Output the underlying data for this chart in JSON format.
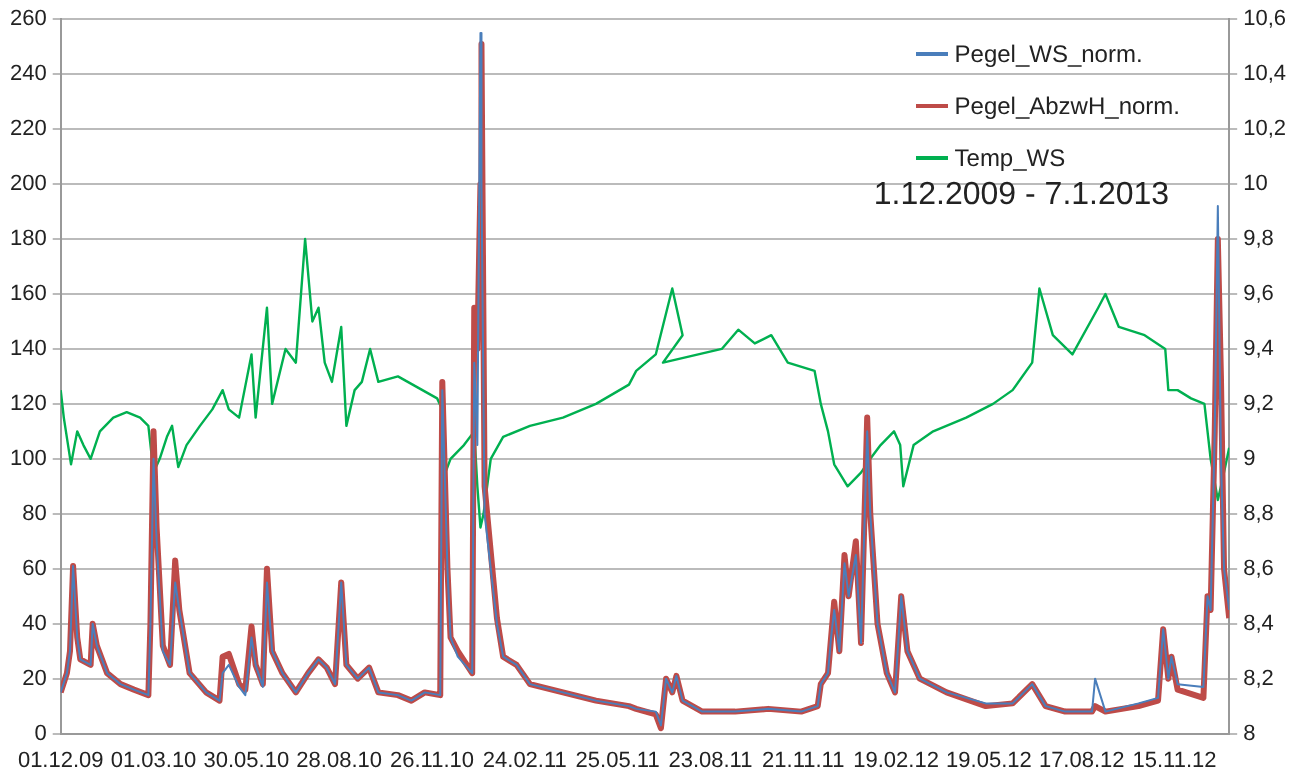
{
  "chart_data": {
    "type": "line",
    "annotations": [
      "1.12.2009 - 7.1.2013"
    ],
    "xlim": [
      "2009-12-01",
      "2013-01-07"
    ],
    "xticks": [
      {
        "value": "2009-12-01",
        "label": "01.12.09"
      },
      {
        "value": "2010-03-01",
        "label": "01.03.10"
      },
      {
        "value": "2010-05-30",
        "label": "30.05.10"
      },
      {
        "value": "2010-08-28",
        "label": "28.08.10"
      },
      {
        "value": "2010-11-26",
        "label": "26.11.10"
      },
      {
        "value": "2011-02-24",
        "label": "24.02.11"
      },
      {
        "value": "2011-05-25",
        "label": "25.05.11"
      },
      {
        "value": "2011-08-23",
        "label": "23.08.11"
      },
      {
        "value": "2011-11-21",
        "label": "21.11.11"
      },
      {
        "value": "2012-02-19",
        "label": "19.02.12"
      },
      {
        "value": "2012-05-19",
        "label": "19.05.12"
      },
      {
        "value": "2012-08-17",
        "label": "17.08.12"
      },
      {
        "value": "2012-11-15",
        "label": "15.11.12"
      }
    ],
    "ylim": [
      0,
      260
    ],
    "yticks": [
      0,
      20,
      40,
      60,
      80,
      100,
      120,
      140,
      160,
      180,
      200,
      220,
      240,
      260
    ],
    "y2lim": [
      8,
      10.6
    ],
    "y2ticks": [
      {
        "value": 8,
        "label": "8"
      },
      {
        "value": 8.2,
        "label": "8,2"
      },
      {
        "value": 8.4,
        "label": "8,4"
      },
      {
        "value": 8.6,
        "label": "8,6"
      },
      {
        "value": 8.8,
        "label": "8,8"
      },
      {
        "value": 9,
        "label": "9"
      },
      {
        "value": 9.2,
        "label": "9,2"
      },
      {
        "value": 9.4,
        "label": "9,4"
      },
      {
        "value": 9.6,
        "label": "9,6"
      },
      {
        "value": 9.8,
        "label": "9,8"
      },
      {
        "value": 10,
        "label": "10"
      },
      {
        "value": 10.2,
        "label": "10,2"
      },
      {
        "value": 10.4,
        "label": "10,4"
      },
      {
        "value": 10.6,
        "label": "10,6"
      }
    ],
    "grid": "y",
    "legend": "top right",
    "marker": "none",
    "line_style": "solid",
    "x": [
      "2009-12-01",
      "2009-12-07",
      "2009-12-10",
      "2009-12-13",
      "2009-12-17",
      "2009-12-20",
      "2009-12-30",
      "2010-01-01",
      "2010-01-05",
      "2010-01-15",
      "2010-01-28",
      "2010-02-10",
      "2010-02-24",
      "2010-02-26",
      "2010-03-01",
      "2010-03-04",
      "2010-03-10",
      "2010-03-17",
      "2010-03-22",
      "2010-03-26",
      "2010-04-05",
      "2010-04-21",
      "2010-05-04",
      "2010-05-07",
      "2010-05-13",
      "2010-05-23",
      "2010-05-29",
      "2010-06-04",
      "2010-06-08",
      "2010-06-15",
      "2010-06-19",
      "2010-06-24",
      "2010-07-04",
      "2010-07-17",
      "2010-07-29",
      "2010-08-08",
      "2010-08-16",
      "2010-08-24",
      "2010-08-30",
      "2010-09-04",
      "2010-09-15",
      "2010-09-26",
      "2010-10-05",
      "2010-10-24",
      "2010-11-06",
      "2010-11-19",
      "2010-12-04",
      "2010-12-06",
      "2010-12-11",
      "2010-12-14",
      "2010-12-21",
      "2011-01-04",
      "2011-01-06",
      "2011-01-09",
      "2011-01-12",
      "2011-01-13",
      "2011-01-16",
      "2011-01-28",
      "2011-02-03",
      "2011-02-16",
      "2011-03-01",
      "2011-04-02",
      "2011-05-04",
      "2011-06-05",
      "2011-06-12",
      "2011-07-01",
      "2011-07-06",
      "2011-07-11",
      "2011-07-17",
      "2011-07-21",
      "2011-07-27",
      "2011-08-15",
      "2011-09-16",
      "2011-10-18",
      "2011-11-19",
      "2011-12-05",
      "2011-12-08",
      "2011-12-15",
      "2011-12-18",
      "2011-12-21",
      "2011-12-26",
      "2011-12-31",
      "2012-01-04",
      "2012-01-11",
      "2012-01-16",
      "2012-01-22",
      "2012-01-25",
      "2012-02-01",
      "2012-02-10",
      "2012-02-18",
      "2012-02-24",
      "2012-03-01",
      "2012-03-13",
      "2012-04-08",
      "2012-05-16",
      "2012-06-11",
      "2012-06-30",
      "2012-07-13",
      "2012-08-01",
      "2012-08-27",
      "2012-08-30",
      "2012-09-09",
      "2012-10-11",
      "2012-10-30",
      "2012-11-04",
      "2012-11-09",
      "2012-11-12",
      "2012-11-18",
      "2012-12-13",
      "2012-12-17",
      "2012-12-20",
      "2012-12-24",
      "2012-12-27",
      "2012-12-30",
      "2013-01-02",
      "2013-01-07"
    ],
    "series": [
      {
        "name": "Pegel_WS_norm.",
        "color": "#4a7ebb",
        "values": [
          15,
          22,
          30,
          61,
          35,
          27,
          25,
          40,
          32,
          22,
          18,
          16,
          14,
          40,
          100,
          70,
          30,
          25,
          55,
          45,
          22,
          15,
          12,
          22,
          25,
          17,
          14,
          35,
          25,
          17,
          55,
          30,
          22,
          15,
          22,
          27,
          24,
          18,
          55,
          25,
          20,
          24,
          15,
          14,
          12,
          15,
          14,
          125,
          60,
          35,
          28,
          22,
          135,
          105,
          255,
          200,
          80,
          40,
          28,
          25,
          18,
          15,
          12,
          10,
          9,
          8,
          3,
          20,
          15,
          21,
          12,
          8,
          8,
          9,
          8,
          10,
          18,
          22,
          35,
          45,
          30,
          62,
          50,
          65,
          33,
          110,
          80,
          40,
          22,
          15,
          50,
          30,
          20,
          15,
          11,
          11,
          18,
          10,
          8,
          8,
          20,
          8,
          11,
          13,
          38,
          20,
          28,
          18,
          17,
          50,
          45,
          110,
          192,
          100,
          60,
          45
        ]
      },
      {
        "name": "Pegel_AbzwH_norm.",
        "color": "#be4b48",
        "values": [
          15,
          22,
          30,
          61,
          35,
          27,
          25,
          40,
          32,
          22,
          18,
          16,
          14,
          40,
          110,
          75,
          32,
          25,
          63,
          45,
          22,
          15,
          12,
          28,
          29,
          18,
          16,
          39,
          25,
          18,
          60,
          30,
          22,
          15,
          22,
          27,
          24,
          18,
          55,
          25,
          20,
          24,
          15,
          14,
          12,
          15,
          14,
          128,
          60,
          35,
          30,
          22,
          155,
          140,
          200,
          251,
          90,
          42,
          28,
          25,
          18,
          15,
          12,
          10,
          9,
          7,
          2,
          20,
          15,
          21,
          12,
          8,
          8,
          9,
          8,
          10,
          18,
          22,
          35,
          48,
          30,
          65,
          50,
          70,
          33,
          115,
          80,
          40,
          22,
          15,
          50,
          30,
          20,
          15,
          10,
          11,
          18,
          10,
          8,
          8,
          10,
          8,
          10,
          12,
          38,
          20,
          28,
          16,
          13,
          50,
          45,
          110,
          180,
          130,
          60,
          42
        ]
      },
      {
        "name": "Temp_WS",
        "color": "#00b050",
        "axis": "y2",
        "x": [
          "2009-12-01",
          "2009-12-04",
          "2009-12-11",
          "2009-12-17",
          "2009-12-23",
          "2009-12-30",
          "2010-01-08",
          "2010-01-21",
          "2010-02-03",
          "2010-02-16",
          "2010-02-24",
          "2010-03-01",
          "2010-03-07",
          "2010-03-14",
          "2010-03-19",
          "2010-03-25",
          "2010-04-02",
          "2010-04-15",
          "2010-04-27",
          "2010-05-07",
          "2010-05-13",
          "2010-05-23",
          "2010-06-04",
          "2010-06-08",
          "2010-06-19",
          "2010-06-24",
          "2010-07-07",
          "2010-07-17",
          "2010-07-26",
          "2010-08-02",
          "2010-08-08",
          "2010-08-14",
          "2010-08-21",
          "2010-08-30",
          "2010-09-04",
          "2010-09-12",
          "2010-09-19",
          "2010-09-27",
          "2010-10-05",
          "2010-10-24",
          "2010-11-12",
          "2010-12-01",
          "2010-12-06",
          "2010-12-09",
          "2010-12-14",
          "2010-12-27",
          "2011-01-06",
          "2011-01-09",
          "2011-01-12",
          "2011-01-15",
          "2011-01-22",
          "2011-02-03",
          "2011-03-01",
          "2011-04-02",
          "2011-05-04",
          "2011-06-05",
          "2011-06-12",
          "2011-07-01",
          "2011-07-17",
          "2011-07-27",
          "2011-07-08",
          "2011-09-03",
          "2011-09-19",
          "2011-10-05",
          "2011-10-21",
          "2011-11-06",
          "2011-12-02",
          "2011-12-08",
          "2011-12-15",
          "2011-12-21",
          "2012-01-03",
          "2012-01-16",
          "2012-01-25",
          "2012-02-04",
          "2012-02-17",
          "2012-02-23",
          "2012-02-26",
          "2012-03-07",
          "2012-03-26",
          "2012-04-27",
          "2012-05-23",
          "2012-06-11",
          "2012-06-30",
          "2012-07-07",
          "2012-07-20",
          "2012-08-08",
          "2012-09-02",
          "2012-09-09",
          "2012-09-22",
          "2012-10-17",
          "2012-11-06",
          "2012-11-09",
          "2012-11-18",
          "2012-12-01",
          "2012-12-14",
          "2012-12-20",
          "2012-12-27",
          "2013-01-02",
          "2013-01-07"
        ],
        "values": [
          9.25,
          9.15,
          8.98,
          9.1,
          9.05,
          9,
          9.1,
          9.15,
          9.17,
          9.15,
          9.12,
          8.95,
          9,
          9.08,
          9.12,
          8.97,
          9.05,
          9.12,
          9.18,
          9.25,
          9.18,
          9.15,
          9.38,
          9.15,
          9.55,
          9.2,
          9.4,
          9.35,
          9.8,
          9.5,
          9.55,
          9.35,
          9.28,
          9.48,
          9.12,
          9.25,
          9.28,
          9.4,
          9.28,
          9.3,
          9.26,
          9.22,
          9.18,
          8.95,
          9,
          9.05,
          9.1,
          8.9,
          8.75,
          8.8,
          9,
          9.08,
          9.12,
          9.15,
          9.2,
          9.27,
          9.32,
          9.38,
          9.62,
          9.45,
          9.35,
          9.4,
          9.47,
          9.42,
          9.45,
          9.35,
          9.32,
          9.2,
          9.1,
          8.98,
          8.9,
          8.95,
          9,
          9.05,
          9.1,
          9.05,
          8.9,
          9.05,
          9.1,
          9.15,
          9.2,
          9.25,
          9.35,
          9.62,
          9.45,
          9.38,
          9.55,
          9.6,
          9.48,
          9.45,
          9.4,
          9.25,
          9.25,
          9.22,
          9.2,
          9,
          8.85,
          8.95,
          9.04
        ]
      }
    ]
  }
}
